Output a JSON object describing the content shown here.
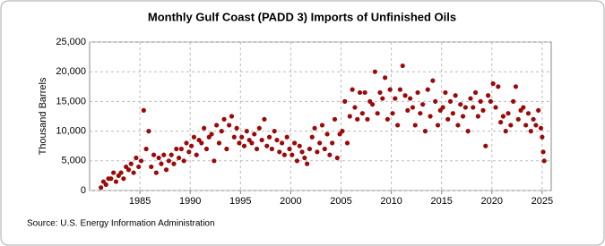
{
  "chart_data": {
    "type": "scatter",
    "title": "Monthly Gulf Coast (PADD 3) Imports of Unfinished Oils",
    "y_label": "Thousand Barrels",
    "source": "Source: U.S. Energy Information Administration",
    "color": "#9b0a0a",
    "grid": true,
    "xlim": [
      1980,
      2025.9
    ],
    "xticks": [
      1985,
      1990,
      1995,
      2000,
      2005,
      2010,
      2015,
      2020,
      2025
    ],
    "ylim": [
      0,
      25000
    ],
    "yticks": [
      0,
      {
        "value": 5000,
        "label": "5,000"
      },
      {
        "value": 10000,
        "label": "10,000"
      },
      {
        "value": 15000,
        "label": "15,000"
      },
      {
        "value": 20000,
        "label": "20,000"
      },
      {
        "value": 25000,
        "label": "25,000"
      }
    ],
    "x": [
      1981.125,
      1981.375,
      1981.625,
      1981.875,
      1982.125,
      1982.375,
      1982.625,
      1982.875,
      1983.125,
      1983.375,
      1983.625,
      1983.875,
      1984.125,
      1984.375,
      1984.625,
      1984.875,
      1985.125,
      1985.375,
      1985.625,
      1985.875,
      1986.125,
      1986.375,
      1986.625,
      1986.875,
      1987.125,
      1987.375,
      1987.625,
      1987.875,
      1988.125,
      1988.375,
      1988.625,
      1988.875,
      1989.125,
      1989.375,
      1989.625,
      1989.875,
      1990.125,
      1990.375,
      1990.625,
      1990.875,
      1991.125,
      1991.375,
      1991.625,
      1991.875,
      1992.125,
      1992.375,
      1992.625,
      1992.875,
      1993.125,
      1993.375,
      1993.625,
      1993.875,
      1994.125,
      1994.375,
      1994.625,
      1994.875,
      1995.125,
      1995.375,
      1995.625,
      1995.875,
      1996.125,
      1996.375,
      1996.625,
      1996.875,
      1997.125,
      1997.375,
      1997.625,
      1997.875,
      1998.125,
      1998.375,
      1998.625,
      1998.875,
      1999.125,
      1999.375,
      1999.625,
      1999.875,
      2000.125,
      2000.375,
      2000.625,
      2000.875,
      2001.125,
      2001.375,
      2001.625,
      2001.875,
      2002.125,
      2002.375,
      2002.625,
      2002.875,
      2003.125,
      2003.375,
      2003.625,
      2003.875,
      2004.125,
      2004.375,
      2004.625,
      2004.875,
      2005.125,
      2005.375,
      2005.625,
      2005.875,
      2006.125,
      2006.375,
      2006.625,
      2006.875,
      2007.125,
      2007.375,
      2007.625,
      2007.875,
      2008.125,
      2008.375,
      2008.625,
      2008.875,
      2009.125,
      2009.375,
      2009.625,
      2009.875,
      2010.125,
      2010.375,
      2010.625,
      2010.875,
      2011.125,
      2011.375,
      2011.625,
      2011.875,
      2012.125,
      2012.375,
      2012.625,
      2012.875,
      2013.125,
      2013.375,
      2013.625,
      2013.875,
      2014.125,
      2014.375,
      2014.625,
      2014.875,
      2015.125,
      2015.375,
      2015.625,
      2015.875,
      2016.125,
      2016.375,
      2016.625,
      2016.875,
      2017.125,
      2017.375,
      2017.625,
      2017.875,
      2018.125,
      2018.375,
      2018.625,
      2018.875,
      2019.125,
      2019.375,
      2019.625,
      2019.875,
      2020.125,
      2020.375,
      2020.625,
      2020.875,
      2021.125,
      2021.375,
      2021.625,
      2021.875,
      2022.125,
      2022.375,
      2022.625,
      2022.875,
      2023.125,
      2023.375,
      2023.625,
      2023.875,
      2024.125,
      2024.375,
      2024.625,
      2024.875,
      2025.0,
      2025.1,
      2025.2
    ],
    "values": [
      500,
      1500,
      1000,
      2000,
      2000,
      3000,
      1500,
      2500,
      3000,
      2000,
      4000,
      3500,
      4500,
      3000,
      5500,
      4000,
      5000,
      13500,
      7000,
      10000,
      4000,
      6000,
      3000,
      5500,
      4500,
      6000,
      3500,
      5000,
      6000,
      4500,
      7000,
      5500,
      7000,
      5000,
      8000,
      6500,
      7500,
      9000,
      6000,
      8500,
      8000,
      10500,
      7000,
      9000,
      9500,
      5000,
      11000,
      8000,
      10000,
      12000,
      7000,
      11000,
      12500,
      9000,
      10500,
      8000,
      9000,
      7500,
      10000,
      8500,
      8000,
      9500,
      7000,
      10500,
      8500,
      12000,
      7500,
      9000,
      7000,
      10000,
      8500,
      6500,
      8000,
      6000,
      9000,
      7000,
      6000,
      8000,
      5000,
      7500,
      6500,
      5500,
      4500,
      7000,
      9000,
      10500,
      6500,
      8000,
      11000,
      7000,
      9500,
      6000,
      8000,
      12000,
      5500,
      9500,
      10000,
      15000,
      8000,
      12500,
      17000,
      14000,
      12000,
      16500,
      13000,
      16500,
      12000,
      15000,
      14500,
      20000,
      13000,
      16500,
      15500,
      19000,
      12000,
      17000,
      13000,
      15500,
      11000,
      17000,
      21000,
      16000,
      13500,
      15500,
      14000,
      11000,
      16500,
      13000,
      14500,
      10000,
      17000,
      12500,
      18500,
      15000,
      11000,
      13500,
      14000,
      16500,
      12000,
      15000,
      13000,
      16000,
      11000,
      14500,
      12500,
      14000,
      10000,
      15500,
      14000,
      16500,
      12500,
      15000,
      13500,
      7500,
      16000,
      15000,
      18000,
      14000,
      17500,
      11500,
      12500,
      10000,
      13000,
      11000,
      15000,
      17500,
      12000,
      13500,
      14000,
      11000,
      13000,
      10000,
      12000,
      11000,
      13500,
      10500,
      9000,
      6500,
      5000
    ]
  }
}
